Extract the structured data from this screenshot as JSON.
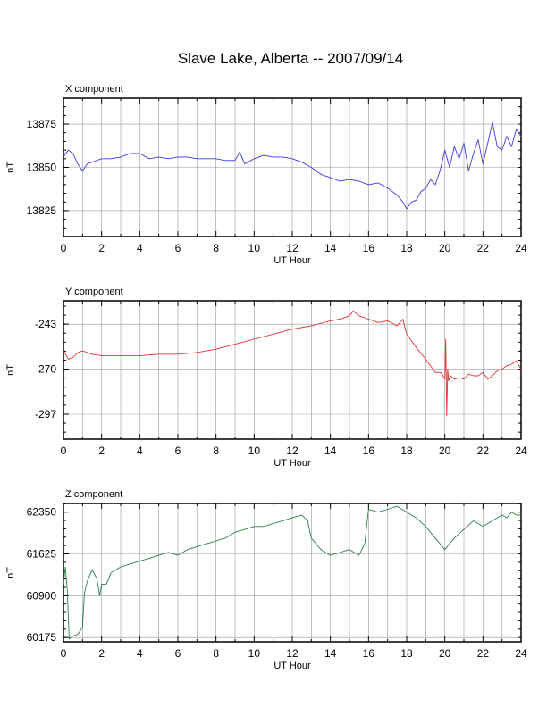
{
  "title": "Slave Lake, Alberta -- 2007/09/14",
  "chart_data": [
    {
      "type": "line",
      "title": "X component",
      "xlabel": "UT Hour",
      "ylabel": "nT",
      "xlim": [
        0,
        24
      ],
      "ylim": [
        13810,
        13890
      ],
      "xticks": [
        0,
        2,
        4,
        6,
        8,
        10,
        12,
        14,
        16,
        18,
        20,
        22,
        24
      ],
      "yticks": [
        13825,
        13850,
        13875
      ],
      "grid": true,
      "color": "#3a3ae0",
      "series": [
        {
          "x": [
            0,
            0.25,
            0.5,
            0.75,
            1.0,
            1.25,
            1.5,
            2.0,
            2.5,
            3.0,
            3.5,
            4.0,
            4.5,
            5.0,
            5.5,
            6.0,
            6.5,
            7.0,
            7.5,
            8.0,
            8.5,
            9.0,
            9.25,
            9.5,
            10.0,
            10.5,
            11.0,
            11.5,
            12.0,
            12.5,
            13.0,
            13.5,
            14.0,
            14.5,
            15.0,
            15.5,
            16.0,
            16.5,
            17.0,
            17.5,
            17.8,
            18.0,
            18.25,
            18.5,
            18.75,
            19.0,
            19.25,
            19.5,
            19.75,
            20.0,
            20.25,
            20.5,
            20.75,
            21.0,
            21.25,
            21.5,
            21.75,
            22.0,
            22.25,
            22.5,
            22.75,
            23.0,
            23.25,
            23.5,
            23.75,
            24.0
          ],
          "values": [
            13856,
            13860,
            13858,
            13852,
            13848,
            13852,
            13853,
            13855,
            13855,
            13856,
            13858,
            13858,
            13855,
            13856,
            13855,
            13856,
            13856,
            13855,
            13855,
            13855,
            13854,
            13854,
            13859,
            13852,
            13855,
            13857,
            13856,
            13856,
            13855,
            13853,
            13850,
            13846,
            13844,
            13842,
            13843,
            13842,
            13840,
            13841,
            13838,
            13834,
            13830,
            13826,
            13830,
            13831,
            13836,
            13838,
            13843,
            13840,
            13848,
            13860,
            13850,
            13862,
            13855,
            13864,
            13848,
            13858,
            13866,
            13852,
            13864,
            13876,
            13862,
            13860,
            13868,
            13862,
            13872,
            13868
          ]
        }
      ]
    },
    {
      "type": "line",
      "title": "Y component",
      "xlabel": "UT Hour",
      "ylabel": "nT",
      "xlim": [
        0,
        24
      ],
      "ylim": [
        -312,
        -229
      ],
      "xticks": [
        0,
        2,
        4,
        6,
        8,
        10,
        12,
        14,
        16,
        18,
        20,
        22,
        24
      ],
      "yticks": [
        -243,
        -270,
        -297
      ],
      "grid": true,
      "color": "#e03030",
      "series": [
        {
          "x": [
            0,
            0.25,
            0.5,
            0.75,
            1.0,
            1.5,
            2.0,
            3.0,
            4.0,
            5.0,
            6.0,
            7.0,
            8.0,
            9.0,
            10.0,
            11.0,
            12.0,
            13.0,
            14.0,
            14.5,
            15.0,
            15.2,
            15.5,
            16.0,
            16.5,
            17.0,
            17.5,
            17.8,
            18.0,
            18.5,
            19.0,
            19.5,
            19.8,
            20.0,
            20.05,
            20.1,
            20.15,
            20.2,
            20.3,
            20.5,
            20.75,
            21.0,
            21.25,
            21.5,
            21.75,
            22.0,
            22.25,
            22.5,
            22.75,
            23.0,
            23.25,
            23.5,
            23.75,
            24.0
          ],
          "values": [
            -259,
            -264,
            -263,
            -260,
            -259,
            -261,
            -262,
            -262,
            -262,
            -261,
            -261,
            -260,
            -258,
            -255,
            -252,
            -249,
            -246,
            -244,
            -241,
            -240,
            -238,
            -235,
            -238,
            -240,
            -242,
            -241,
            -244,
            -240,
            -249,
            -257,
            -264,
            -272,
            -272,
            -276,
            -252,
            -298,
            -270,
            -277,
            -274,
            -276,
            -275,
            -276,
            -273,
            -274,
            -274,
            -272,
            -276,
            -274,
            -271,
            -270,
            -268,
            -267,
            -265,
            -270
          ]
        }
      ]
    },
    {
      "type": "line",
      "title": "Z component",
      "xlabel": "UT Hour",
      "ylabel": "nT",
      "xlim": [
        0,
        24
      ],
      "ylim": [
        60100,
        62500
      ],
      "xticks": [
        0,
        2,
        4,
        6,
        8,
        10,
        12,
        14,
        16,
        18,
        20,
        22,
        24
      ],
      "yticks": [
        60175,
        60900,
        61625,
        62350
      ],
      "grid": true,
      "color": "#2e7d4a",
      "series": [
        {
          "x": [
            0,
            0.1,
            0.2,
            0.3,
            0.5,
            0.75,
            1.0,
            1.1,
            1.25,
            1.5,
            1.75,
            1.9,
            2.0,
            2.25,
            2.5,
            3.0,
            3.5,
            4.0,
            4.5,
            5.0,
            5.5,
            6.0,
            6.5,
            7.0,
            7.5,
            8.0,
            8.5,
            9.0,
            9.5,
            10.0,
            10.5,
            11.0,
            11.5,
            12.0,
            12.5,
            12.8,
            13.0,
            13.5,
            14.0,
            14.5,
            15.0,
            15.5,
            15.8,
            16.0,
            16.5,
            17.0,
            17.5,
            18.0,
            18.5,
            19.0,
            19.5,
            20.0,
            20.5,
            21.0,
            21.5,
            22.0,
            22.5,
            23.0,
            23.25,
            23.5,
            23.75,
            24.0
          ],
          "values": [
            61100,
            61400,
            61000,
            60150,
            60200,
            60230,
            60350,
            60950,
            61150,
            61350,
            61200,
            60900,
            61100,
            61100,
            61300,
            61400,
            61450,
            61500,
            61550,
            61600,
            61650,
            61600,
            61700,
            61750,
            61800,
            61850,
            61900,
            62000,
            62050,
            62100,
            62100,
            62150,
            62200,
            62250,
            62300,
            62200,
            61900,
            61700,
            61600,
            61650,
            61700,
            61600,
            61800,
            62400,
            62350,
            62400,
            62450,
            62350,
            62250,
            62100,
            61900,
            61700,
            61900,
            62050,
            62200,
            62100,
            62200,
            62300,
            62250,
            62350,
            62300,
            62300
          ]
        }
      ]
    }
  ]
}
